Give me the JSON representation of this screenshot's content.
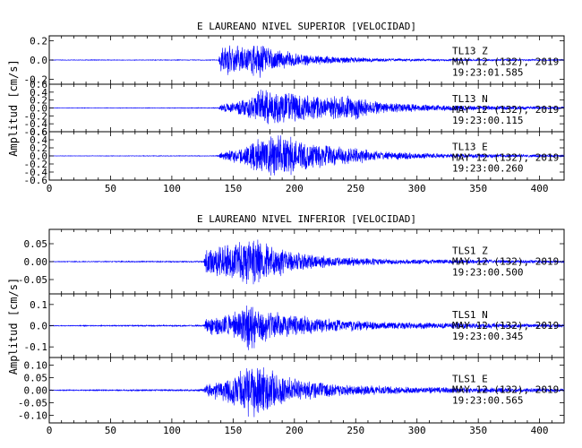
{
  "chart_data": [
    {
      "type": "line",
      "title": "E LAUREANO NIVEL SUPERIOR [VELOCIDAD]",
      "ylabel": "Amplitud [cm/s]",
      "xlabel": "",
      "xlim": [
        0,
        420
      ],
      "x_ticks": [
        "0",
        "50",
        "100",
        "150",
        "200",
        "250",
        "300",
        "350",
        "400"
      ],
      "series_color": "#0000ff",
      "panels": [
        {
          "station": "TL13   Z",
          "date": "MAY 12 (132), 2019",
          "time": "19:23:01.585",
          "ylim": [
            -0.25,
            0.25
          ],
          "y_ticks": [
            "0.2",
            "0.0",
            "-0.2"
          ],
          "envelope": [
            {
              "t": 0,
              "a": 0.003
            },
            {
              "t": 138,
              "a": 0.004
            },
            {
              "t": 140,
              "a": 0.14
            },
            {
              "t": 145,
              "a": 0.17
            },
            {
              "t": 152,
              "a": 0.15
            },
            {
              "t": 160,
              "a": 0.15
            },
            {
              "t": 168,
              "a": 0.18
            },
            {
              "t": 173,
              "a": 0.24
            },
            {
              "t": 180,
              "a": 0.13
            },
            {
              "t": 200,
              "a": 0.08
            },
            {
              "t": 230,
              "a": 0.04
            },
            {
              "t": 270,
              "a": 0.02
            },
            {
              "t": 320,
              "a": 0.012
            },
            {
              "t": 420,
              "a": 0.006
            }
          ]
        },
        {
          "station": "TL13   N",
          "date": "MAY 12 (132), 2019",
          "time": "19:23:00.115",
          "ylim": [
            -0.6,
            0.6
          ],
          "y_ticks": [
            "0.6",
            "0.4",
            "0.2",
            "0.0",
            "-0.2",
            "-0.4",
            "-0.6"
          ],
          "envelope": [
            {
              "t": 0,
              "a": 0.005
            },
            {
              "t": 138,
              "a": 0.01
            },
            {
              "t": 140,
              "a": 0.1
            },
            {
              "t": 155,
              "a": 0.2
            },
            {
              "t": 165,
              "a": 0.3
            },
            {
              "t": 170,
              "a": 0.55
            },
            {
              "t": 178,
              "a": 0.5
            },
            {
              "t": 190,
              "a": 0.45
            },
            {
              "t": 205,
              "a": 0.38
            },
            {
              "t": 225,
              "a": 0.3
            },
            {
              "t": 245,
              "a": 0.35
            },
            {
              "t": 270,
              "a": 0.15
            },
            {
              "t": 320,
              "a": 0.08
            },
            {
              "t": 420,
              "a": 0.03
            }
          ]
        },
        {
          "station": "TL13   E",
          "date": "MAY 12 (132), 2019",
          "time": "19:23:00.260",
          "ylim": [
            -0.6,
            0.6
          ],
          "y_ticks": [
            "0.6",
            "0.4",
            "0.2",
            "0.0",
            "-0.2",
            "-0.4",
            "-0.6"
          ],
          "envelope": [
            {
              "t": 0,
              "a": 0.005
            },
            {
              "t": 138,
              "a": 0.01
            },
            {
              "t": 140,
              "a": 0.1
            },
            {
              "t": 160,
              "a": 0.25
            },
            {
              "t": 170,
              "a": 0.45
            },
            {
              "t": 178,
              "a": 0.55
            },
            {
              "t": 190,
              "a": 0.6
            },
            {
              "t": 200,
              "a": 0.5
            },
            {
              "t": 215,
              "a": 0.35
            },
            {
              "t": 240,
              "a": 0.25
            },
            {
              "t": 270,
              "a": 0.12
            },
            {
              "t": 320,
              "a": 0.06
            },
            {
              "t": 420,
              "a": 0.03
            }
          ]
        }
      ]
    },
    {
      "type": "line",
      "title": "E LAUREANO NIVEL INFERIOR [VELOCIDAD]",
      "ylabel": "Amplitud [cm/s]",
      "xlabel": "",
      "xlim": [
        0,
        420
      ],
      "x_ticks": [
        "0",
        "50",
        "100",
        "150",
        "200",
        "250",
        "300",
        "350",
        "400"
      ],
      "series_color": "#0000ff",
      "panels": [
        {
          "station": "TLS1   Z",
          "date": "MAY 12 (132), 2019",
          "time": "19:23:00.500",
          "ylim": [
            -0.09,
            0.09
          ],
          "y_ticks": [
            "0.05",
            "0.00",
            "-0.05"
          ],
          "envelope": [
            {
              "t": 0,
              "a": 0.001
            },
            {
              "t": 126,
              "a": 0.002
            },
            {
              "t": 128,
              "a": 0.04
            },
            {
              "t": 140,
              "a": 0.05
            },
            {
              "t": 155,
              "a": 0.06
            },
            {
              "t": 165,
              "a": 0.07
            },
            {
              "t": 170,
              "a": 0.08
            },
            {
              "t": 180,
              "a": 0.05
            },
            {
              "t": 200,
              "a": 0.03
            },
            {
              "t": 230,
              "a": 0.015
            },
            {
              "t": 280,
              "a": 0.008
            },
            {
              "t": 420,
              "a": 0.004
            }
          ]
        },
        {
          "station": "TLS1   N",
          "date": "MAY 12 (132), 2019",
          "time": "19:23:00.345",
          "ylim": [
            -0.15,
            0.15
          ],
          "y_ticks": [
            "0.1",
            "0.0",
            "-0.1"
          ],
          "envelope": [
            {
              "t": 0,
              "a": 0.002
            },
            {
              "t": 126,
              "a": 0.004
            },
            {
              "t": 128,
              "a": 0.04
            },
            {
              "t": 145,
              "a": 0.06
            },
            {
              "t": 158,
              "a": 0.09
            },
            {
              "t": 163,
              "a": 0.13
            },
            {
              "t": 170,
              "a": 0.1
            },
            {
              "t": 185,
              "a": 0.07
            },
            {
              "t": 205,
              "a": 0.05
            },
            {
              "t": 240,
              "a": 0.03
            },
            {
              "t": 280,
              "a": 0.018
            },
            {
              "t": 420,
              "a": 0.008
            }
          ]
        },
        {
          "station": "TLS1   E",
          "date": "MAY 12 (132), 2019",
          "time": "19:23:00.565",
          "ylim": [
            -0.13,
            0.13
          ],
          "y_ticks": [
            "0.10",
            "0.05",
            "0.00",
            "-0.05",
            "-0.10"
          ],
          "envelope": [
            {
              "t": 0,
              "a": 0.002
            },
            {
              "t": 126,
              "a": 0.004
            },
            {
              "t": 128,
              "a": 0.03
            },
            {
              "t": 145,
              "a": 0.05
            },
            {
              "t": 158,
              "a": 0.1
            },
            {
              "t": 165,
              "a": 0.12
            },
            {
              "t": 175,
              "a": 0.1
            },
            {
              "t": 190,
              "a": 0.06
            },
            {
              "t": 210,
              "a": 0.04
            },
            {
              "t": 240,
              "a": 0.025
            },
            {
              "t": 290,
              "a": 0.015
            },
            {
              "t": 420,
              "a": 0.008
            }
          ]
        }
      ]
    }
  ]
}
